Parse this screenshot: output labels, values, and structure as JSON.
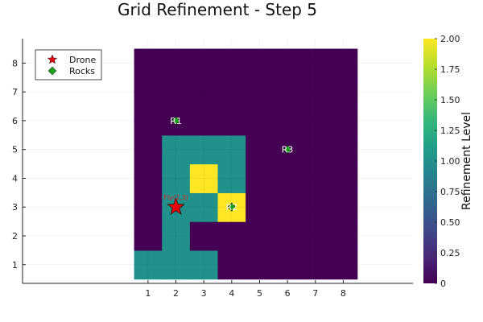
{
  "chart_data": {
    "type": "heatmap",
    "title": "Grid Refinement - Step 5",
    "xlabel": "",
    "ylabel": "",
    "xlim": [
      -3.5,
      10.5
    ],
    "ylim": [
      0.35,
      8.85
    ],
    "xticks": [
      1,
      2,
      3,
      4,
      5,
      6,
      7,
      8
    ],
    "yticks": [
      1,
      2,
      3,
      4,
      5,
      6,
      7,
      8
    ],
    "colormap": "viridis",
    "colorbar": {
      "label": "Refinement Level",
      "range": [
        0,
        2
      ],
      "ticks": [
        "0",
        "0.25",
        "0.50",
        "0.75",
        "1.00",
        "1.25",
        "1.50",
        "1.75",
        "2.00"
      ]
    },
    "level_colors": {
      "0": "#440154",
      "1": "#21918c",
      "2": "#fde725"
    },
    "grid": [
      [
        1,
        1,
        1,
        0,
        0,
        0,
        0,
        0
      ],
      [
        0,
        1,
        0,
        0,
        0,
        0,
        0,
        0
      ],
      [
        0,
        1,
        1,
        2,
        0,
        0,
        0,
        0
      ],
      [
        0,
        1,
        2,
        1,
        0,
        0,
        0,
        0
      ],
      [
        0,
        1,
        1,
        1,
        0,
        0,
        0,
        0
      ],
      [
        0,
        0,
        0,
        0,
        0,
        0,
        0,
        0
      ],
      [
        0,
        0,
        0,
        0,
        0,
        0,
        0,
        0
      ],
      [
        0,
        0,
        0,
        0,
        0,
        0,
        0,
        0
      ]
    ],
    "drone": {
      "x": 2,
      "y": 3,
      "label": "Fly(2,3)",
      "color": "#e8000b"
    },
    "rocks": [
      {
        "x": 2,
        "y": 6,
        "label": "R1"
      },
      {
        "x": 4,
        "y": 3,
        "label": "R2"
      },
      {
        "x": 6,
        "y": 5,
        "label": "R3"
      }
    ],
    "rock_color": "#1a9e1a",
    "legend": {
      "position": "top-left",
      "entries": [
        {
          "label": "Drone",
          "marker": "star",
          "color": "#e8000b"
        },
        {
          "label": "Rocks",
          "marker": "diamond",
          "color": "#1a9e1a"
        }
      ]
    }
  }
}
